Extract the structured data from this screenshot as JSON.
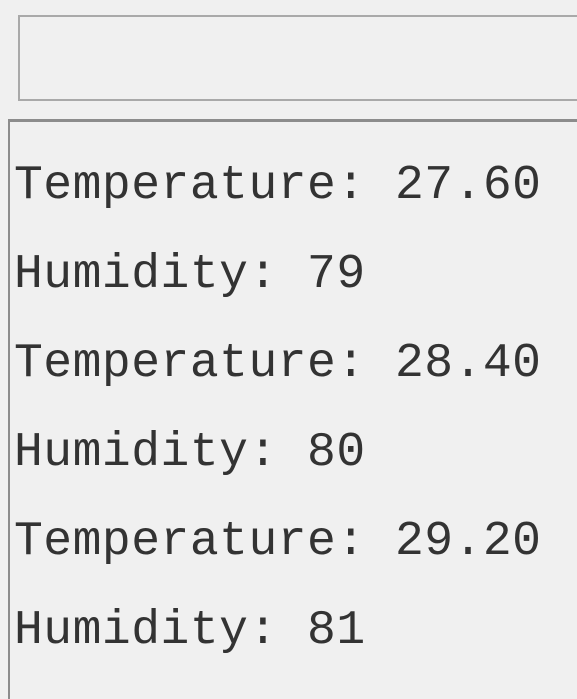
{
  "monitor": {
    "lines": [
      "Temperature: 27.60",
      "Humidity: 79",
      "Temperature: 28.40",
      "Humidity: 80",
      "Temperature: 29.20",
      "Humidity: 81"
    ]
  }
}
